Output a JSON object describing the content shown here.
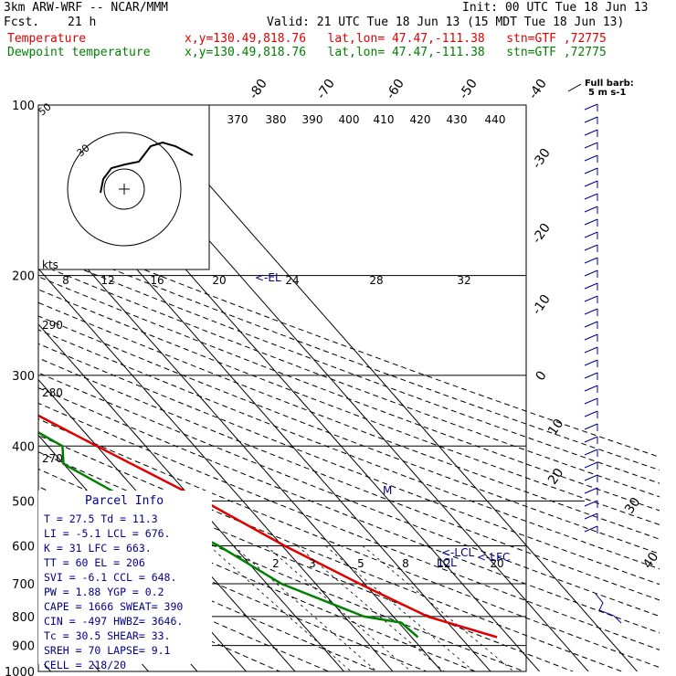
{
  "header": {
    "title": "3km ARW-WRF -- NCAR/MMM",
    "init": "Init: 00 UTC Tue 18 Jun 13",
    "fcst_label": "Fcst.",
    "fcst_hours": "21 h",
    "valid": "Valid: 21 UTC Tue 18 Jun 13 (15 MDT Tue 18 Jun 13)",
    "series": [
      {
        "name": "Temperature",
        "location": "x,y=130.49,818.76   lat,lon= 47.47,-111.38   stn=GTF ,72775",
        "color": "#e00000"
      },
      {
        "name": "Dewpoint temperature",
        "location": "x,y=130.49,818.76   lat,lon= 47.47,-111.38   stn=GTF ,72775",
        "color": "#008000"
      }
    ]
  },
  "chart_data": {
    "type": "line",
    "pressure_levels": [
      100,
      200,
      300,
      400,
      500,
      600,
      700,
      800,
      900,
      1000
    ],
    "series": [
      {
        "name": "Temperature",
        "color": "#e00000",
        "profile": [
          [
            870,
            27.5
          ],
          [
            800,
            17.0
          ],
          [
            700,
            9.0
          ],
          [
            600,
            0.5
          ],
          [
            500,
            -8.0
          ],
          [
            400,
            -20.0
          ],
          [
            300,
            -35.0
          ],
          [
            250,
            -47.0
          ],
          [
            200,
            -57.0
          ],
          [
            160,
            -59.0
          ],
          [
            130,
            -55.0
          ],
          [
            110,
            -52.0
          ],
          [
            100,
            -51.0
          ]
        ]
      },
      {
        "name": "Dewpoint temperature",
        "color": "#008000",
        "profile": [
          [
            870,
            11.3
          ],
          [
            820,
            10.5
          ],
          [
            800,
            4.0
          ],
          [
            700,
            -7.0
          ],
          [
            600,
            -13.0
          ],
          [
            500,
            -23.0
          ],
          [
            430,
            -30.0
          ],
          [
            400,
            -27.0
          ],
          [
            350,
            -33.0
          ],
          [
            300,
            -45.0
          ],
          [
            250,
            -62.0
          ],
          [
            200,
            -72.0
          ],
          [
            160,
            -73.0
          ],
          [
            130,
            -76.0
          ],
          [
            110,
            -79.0
          ],
          [
            100,
            -80.0
          ]
        ]
      }
    ],
    "isotherm_labels": [
      "-80",
      "-70",
      "-60",
      "-50",
      "-40",
      "-30",
      "-20",
      "-10",
      "0",
      "10",
      "20",
      "30",
      "40"
    ],
    "theta_labels": [
      "370",
      "380",
      "390",
      "400",
      "410",
      "420",
      "430",
      "440"
    ],
    "mixing_ratio_labels": [
      "2",
      "3",
      "5",
      "8",
      "12",
      "20"
    ],
    "hodograph": {
      "kts_label": "kts",
      "ring_labels": [
        "50",
        "30"
      ],
      "speed_labels": [
        "8",
        "12",
        "16",
        "20",
        "24",
        "28",
        "32"
      ]
    },
    "moist_labels": [
      "290",
      "280",
      "270"
    ],
    "markers": {
      "el": "<-EL",
      "lcl_1": "<-LCL",
      "lcl_2": "LCL",
      "lfc": "<-LFC",
      "m": "M"
    },
    "wind_header": {
      "title": "Full barb:",
      "units": "5 m s-1"
    }
  },
  "parcel_info": {
    "title": "Parcel Info",
    "rows": [
      "T    =  27.5 Td  =  11.3",
      "LI   =  -5.1 LCL =  676.",
      "K    =    31 LFC =  663.",
      "TT   =    60 EL  =   206",
      "SVI  =  -6.1 CCL =  648.",
      "PW   =  1.88 YGP =   0.2",
      "CAPE =  1666 SWEAT=  390",
      "CIN  =  -497 HWBZ= 3646.",
      "Tc   =  30.5 SHEAR=  33.",
      "SREH =    70 LAPSE=  9.1",
      "CELL = 218/20"
    ]
  }
}
